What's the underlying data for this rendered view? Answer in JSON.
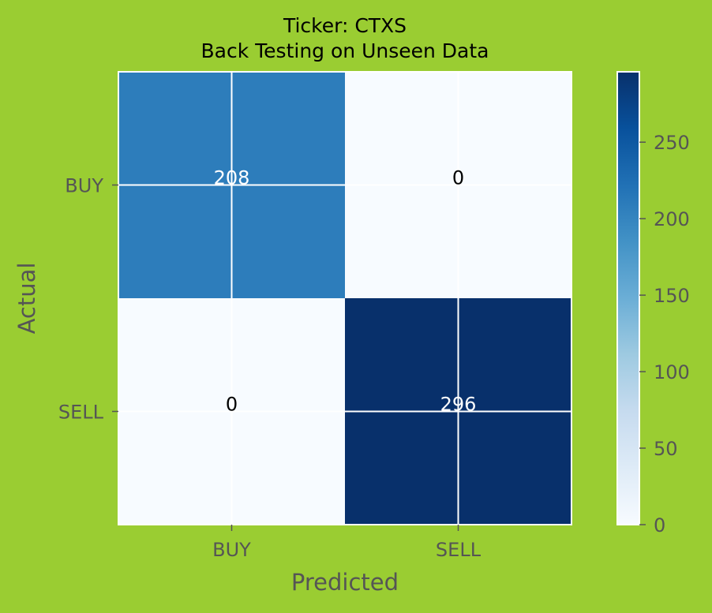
{
  "chart_data": {
    "type": "heatmap",
    "title": "Ticker: CTXS",
    "subtitle": "Back Testing on Unseen Data",
    "xlabel": "Predicted",
    "ylabel": "Actual",
    "x_categories": [
      "BUY",
      "SELL"
    ],
    "y_categories": [
      "BUY",
      "SELL"
    ],
    "matrix": [
      [
        208,
        0
      ],
      [
        0,
        296
      ]
    ],
    "colorbar": {
      "min": 0,
      "max": 296,
      "ticks": [
        0,
        50,
        100,
        150,
        200,
        250
      ],
      "colors": [
        "#f7fbff",
        "#deebf7",
        "#c6dbef",
        "#9ecae1",
        "#6baed6",
        "#4292c6",
        "#2171b5",
        "#08519c",
        "#08306b"
      ]
    },
    "grid": true
  },
  "colors": {
    "background": "#9acd32",
    "text": "#000000",
    "axis_text": "#555555",
    "grid": "#ffffff"
  }
}
